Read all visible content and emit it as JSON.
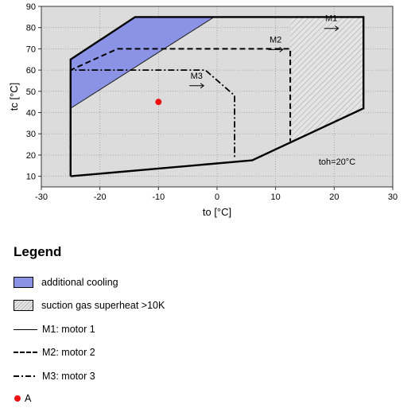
{
  "chart_data": {
    "type": "area",
    "title": "",
    "xlabel": "to [°C]",
    "ylabel": "tc [°C]",
    "xlim": [
      -30,
      30
    ],
    "ylim": [
      5,
      90
    ],
    "xticks": [
      -30,
      -20,
      -10,
      0,
      10,
      20,
      30
    ],
    "yticks": [
      10,
      20,
      30,
      40,
      50,
      60,
      70,
      80,
      90
    ],
    "grid": true,
    "annotation": "toh=20°C",
    "regions": [
      {
        "name": "additional cooling",
        "color": "#8b93e6",
        "points": [
          [
            -25,
            42
          ],
          [
            -25,
            65
          ],
          [
            -14,
            85
          ],
          [
            -0.5,
            85
          ]
        ]
      },
      {
        "name": "suction gas superheat >10K",
        "pattern": "hatch",
        "points": [
          [
            12.5,
            26.5
          ],
          [
            12.5,
            85
          ],
          [
            25,
            85
          ],
          [
            25,
            42
          ]
        ]
      }
    ],
    "series": [
      {
        "name": "M1: motor 1",
        "style": "solid",
        "label": "M1",
        "points": [
          [
            -25,
            10
          ],
          [
            6,
            17.5
          ],
          [
            25,
            42
          ],
          [
            25,
            85
          ],
          [
            -14,
            85
          ],
          [
            -25,
            65
          ],
          [
            -25,
            10
          ]
        ]
      },
      {
        "name": "M2: motor 2",
        "style": "dashed",
        "label": "M2",
        "points": [
          [
            -25,
            10
          ],
          [
            -25,
            60
          ],
          [
            -17,
            70
          ],
          [
            12.5,
            70
          ],
          [
            12.5,
            26.5
          ]
        ]
      },
      {
        "name": "M3: motor 3",
        "style": "dashdot",
        "label": "M3",
        "points": [
          [
            -25,
            10
          ],
          [
            -25,
            60
          ],
          [
            -2,
            60
          ],
          [
            3,
            48
          ],
          [
            3,
            19
          ]
        ]
      }
    ],
    "markers": [
      {
        "name": "A",
        "x": -10,
        "y": 45,
        "color": "#ee1111"
      }
    ]
  },
  "legend": {
    "title": "Legend",
    "items": [
      {
        "label": "additional cooling"
      },
      {
        "label": "suction gas superheat >10K"
      },
      {
        "label": "M1: motor 1"
      },
      {
        "label": "M2: motor 2"
      },
      {
        "label": "M3: motor 3"
      },
      {
        "label": "A"
      }
    ]
  }
}
